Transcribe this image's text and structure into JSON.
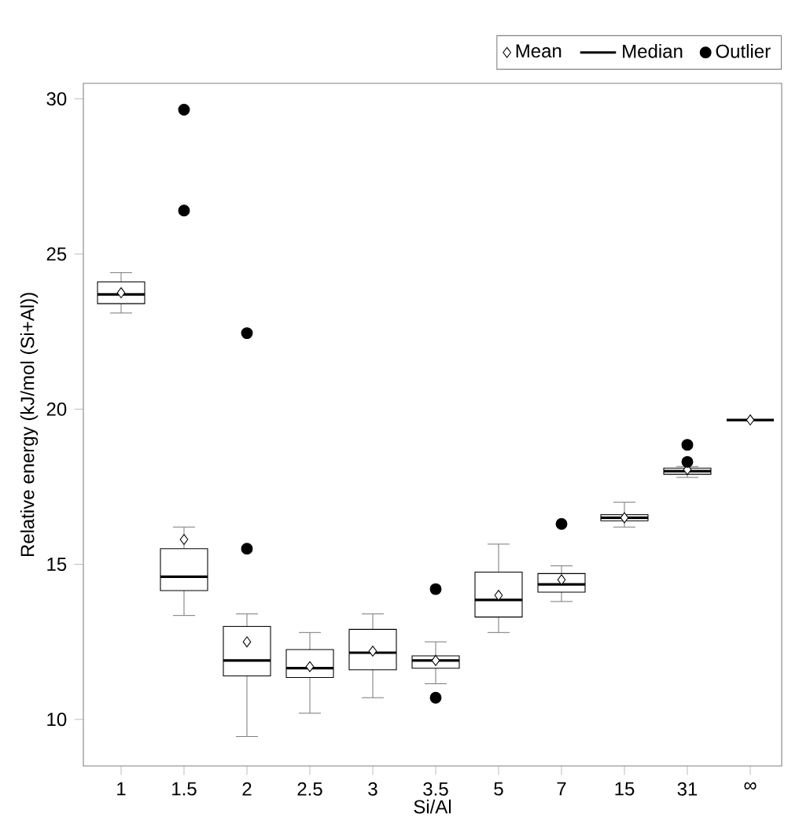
{
  "chart_data": {
    "type": "box",
    "xlabel": "Si/Al",
    "ylabel": "Relative energy (kJ/mol (Si+Al))",
    "categories": [
      "1",
      "1.5",
      "2",
      "2.5",
      "3",
      "3.5",
      "5",
      "7",
      "15",
      "31",
      "∞"
    ],
    "ylim": [
      8.5,
      30.5
    ],
    "yticks": [
      10,
      15,
      20,
      25,
      30
    ],
    "grid": false,
    "legend": "top right",
    "series": [
      {
        "name": "Mean",
        "type": "scatter",
        "marker": "diamond",
        "color": "#000000",
        "x": [
          "1",
          "1.5",
          "2",
          "2.5",
          "3",
          "3.5",
          "5",
          "7",
          "15",
          "31",
          "∞"
        ],
        "values": [
          23.75,
          15.8,
          12.5,
          11.7,
          12.2,
          11.9,
          14.0,
          14.5,
          16.5,
          18.05,
          19.65
        ]
      },
      {
        "name": "Median",
        "type": "box",
        "color": "#000000",
        "boxes": [
          {
            "low": 23.1,
            "q1": 23.4,
            "median": 23.7,
            "q3": 24.1,
            "high": 24.4
          },
          {
            "low": 13.35,
            "q1": 14.15,
            "median": 14.6,
            "q3": 15.5,
            "high": 16.2
          },
          {
            "low": 9.45,
            "q1": 11.4,
            "median": 11.9,
            "q3": 13.0,
            "high": 13.4
          },
          {
            "low": 10.2,
            "q1": 11.35,
            "median": 11.65,
            "q3": 12.25,
            "high": 12.8
          },
          {
            "low": 10.7,
            "q1": 11.6,
            "median": 12.15,
            "q3": 12.9,
            "high": 13.4
          },
          {
            "low": 11.15,
            "q1": 11.65,
            "median": 11.9,
            "q3": 12.05,
            "high": 12.5
          },
          {
            "low": 12.8,
            "q1": 13.3,
            "median": 13.85,
            "q3": 14.75,
            "high": 15.65
          },
          {
            "low": 13.8,
            "q1": 14.1,
            "median": 14.35,
            "q3": 14.7,
            "high": 14.95
          },
          {
            "low": 16.2,
            "q1": 16.4,
            "median": 16.5,
            "q3": 16.6,
            "high": 17.0
          },
          {
            "low": 17.8,
            "q1": 17.9,
            "median": 18.0,
            "q3": 18.1,
            "high": 18.15
          },
          {
            "low": 19.65,
            "q1": 19.65,
            "median": 19.65,
            "q3": 19.65,
            "high": 19.65
          }
        ]
      },
      {
        "name": "Outlier",
        "type": "scatter",
        "marker": "circle",
        "color": "#000000",
        "x": [
          "1.5",
          "1.5",
          "2",
          "2",
          "3.5",
          "3.5",
          "7",
          "31",
          "31"
        ],
        "values": [
          29.65,
          26.4,
          22.45,
          15.5,
          14.2,
          10.7,
          16.3,
          18.85,
          18.3
        ]
      }
    ]
  }
}
